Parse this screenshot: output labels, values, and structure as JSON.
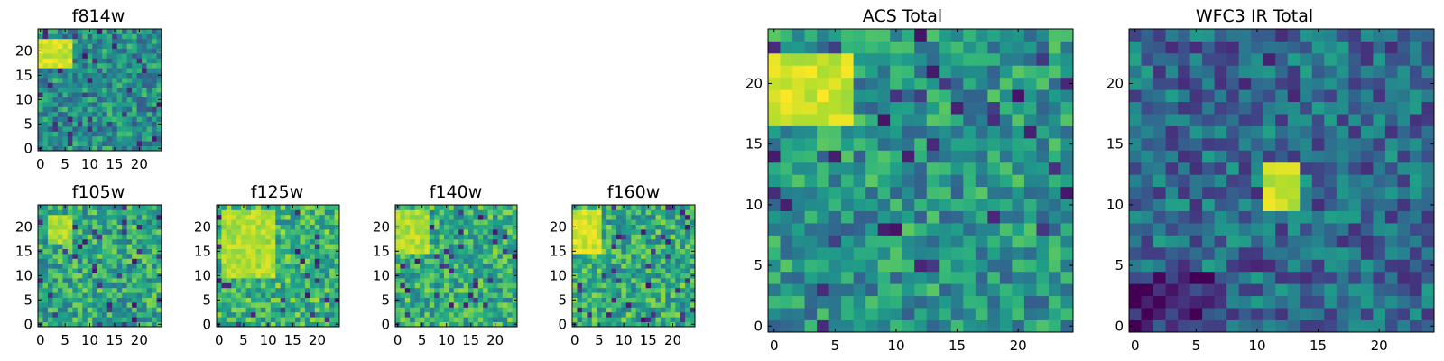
{
  "figure": {
    "colormap": "viridis"
  },
  "chart_data": [
    {
      "type": "heatmap",
      "title": "f814w",
      "x_ticks": [
        "0",
        "5",
        "10",
        "15",
        "20"
      ],
      "y_ticks": [
        "0",
        "5",
        "10",
        "15",
        "20"
      ],
      "xlim": [
        -0.5,
        24.5
      ],
      "ylim": [
        -0.5,
        24.5
      ],
      "grid": false,
      "grid_size": [
        25,
        25
      ],
      "bright_region": {
        "x": [
          0,
          6
        ],
        "y": [
          17,
          22
        ],
        "level": 1.0
      },
      "noise": "mixed, many dark pixels",
      "base_level": 0.5
    },
    {
      "type": "heatmap",
      "title": "f105w",
      "x_ticks": [
        "0",
        "5",
        "10",
        "15",
        "20"
      ],
      "y_ticks": [
        "0",
        "5",
        "10",
        "15",
        "20"
      ],
      "xlim": [
        -0.5,
        24.5
      ],
      "ylim": [
        -0.5,
        24.5
      ],
      "grid": false,
      "grid_size": [
        25,
        25
      ],
      "bright_region": {
        "x": [
          2,
          6
        ],
        "y": [
          17,
          22
        ],
        "level": 0.95
      },
      "noise": "mostly green",
      "base_level": 0.6
    },
    {
      "type": "heatmap",
      "title": "f125w",
      "x_ticks": [
        "0",
        "5",
        "10",
        "15",
        "20"
      ],
      "y_ticks": [
        "0",
        "5",
        "10",
        "15",
        "20"
      ],
      "xlim": [
        -0.5,
        24.5
      ],
      "ylim": [
        -0.5,
        24.5
      ],
      "grid": false,
      "grid_size": [
        25,
        25
      ],
      "bright_region": {
        "x": [
          1,
          11
        ],
        "y": [
          10,
          23
        ],
        "level": 0.95
      },
      "noise": "green-yellow",
      "base_level": 0.65
    },
    {
      "type": "heatmap",
      "title": "f140w",
      "x_ticks": [
        "0",
        "5",
        "10",
        "15",
        "20"
      ],
      "y_ticks": [
        "0",
        "5",
        "10",
        "15",
        "20"
      ],
      "xlim": [
        -0.5,
        24.5
      ],
      "ylim": [
        -0.5,
        24.5
      ],
      "grid": false,
      "grid_size": [
        25,
        25
      ],
      "bright_region": {
        "x": [
          0,
          6
        ],
        "y": [
          15,
          23
        ],
        "level": 0.95
      },
      "noise": "green-yellow",
      "base_level": 0.62
    },
    {
      "type": "heatmap",
      "title": "f160w",
      "x_ticks": [
        "0",
        "5",
        "10",
        "15",
        "20"
      ],
      "y_ticks": [
        "0",
        "5",
        "10",
        "15",
        "20"
      ],
      "xlim": [
        -0.5,
        24.5
      ],
      "ylim": [
        -0.5,
        24.5
      ],
      "grid": false,
      "grid_size": [
        25,
        25
      ],
      "bright_region": {
        "x": [
          0,
          5
        ],
        "y": [
          15,
          23
        ],
        "level": 1.0
      },
      "noise": "green-yellow",
      "base_level": 0.62
    },
    {
      "type": "heatmap",
      "title": "ACS Total",
      "x_ticks": [
        "0",
        "5",
        "10",
        "15",
        "20"
      ],
      "y_ticks": [
        "0",
        "5",
        "10",
        "15",
        "20"
      ],
      "xlim": [
        -0.5,
        24.5
      ],
      "ylim": [
        -0.5,
        24.5
      ],
      "grid": false,
      "grid_size": [
        25,
        25
      ],
      "bright_region": {
        "x": [
          0,
          6
        ],
        "y": [
          17,
          22
        ],
        "level": 1.0
      },
      "noise": "teal-green",
      "base_level": 0.52
    },
    {
      "type": "heatmap",
      "title": "WFC3 IR Total",
      "x_ticks": [
        "0",
        "5",
        "10",
        "15",
        "20"
      ],
      "y_ticks": [
        "0",
        "5",
        "10",
        "15",
        "20"
      ],
      "xlim": [
        -0.5,
        24.5
      ],
      "ylim": [
        -0.5,
        24.5
      ],
      "grid": false,
      "grid_size": [
        25,
        25
      ],
      "bright_region": {
        "x": [
          11,
          13
        ],
        "y": [
          10,
          13
        ],
        "level": 1.0
      },
      "noise": "blue-teal, dark lower-left",
      "base_level": 0.35
    }
  ]
}
